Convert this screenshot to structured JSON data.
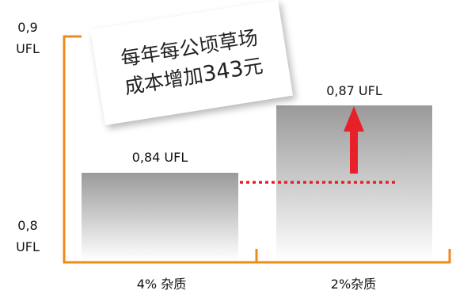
{
  "chart_data": {
    "type": "bar",
    "categories": [
      "4% 杂质",
      "2%杂质"
    ],
    "values": [
      0.84,
      0.87
    ],
    "data_labels": [
      "0,84 UFL",
      "0,87 UFL"
    ],
    "ylim": [
      0.8,
      0.9
    ],
    "y_tick_labels": [
      {
        "value": 0.9,
        "line1": "0,9",
        "line2": "UFL"
      },
      {
        "value": 0.8,
        "line1": "0,8",
        "line2": "UFL"
      }
    ],
    "grid": false,
    "legend": "none"
  },
  "annotation": {
    "line1": "每年每公顷草场",
    "line2_prefix": "成本增加",
    "line2_cost": "343",
    "line2_suffix": "元"
  },
  "colors": {
    "axis": "#f08a1c",
    "bar_top": "#9a9a9a",
    "bar_bottom": "#ffffff",
    "reference_line": "#e8202a",
    "arrow": "#e8202a"
  }
}
